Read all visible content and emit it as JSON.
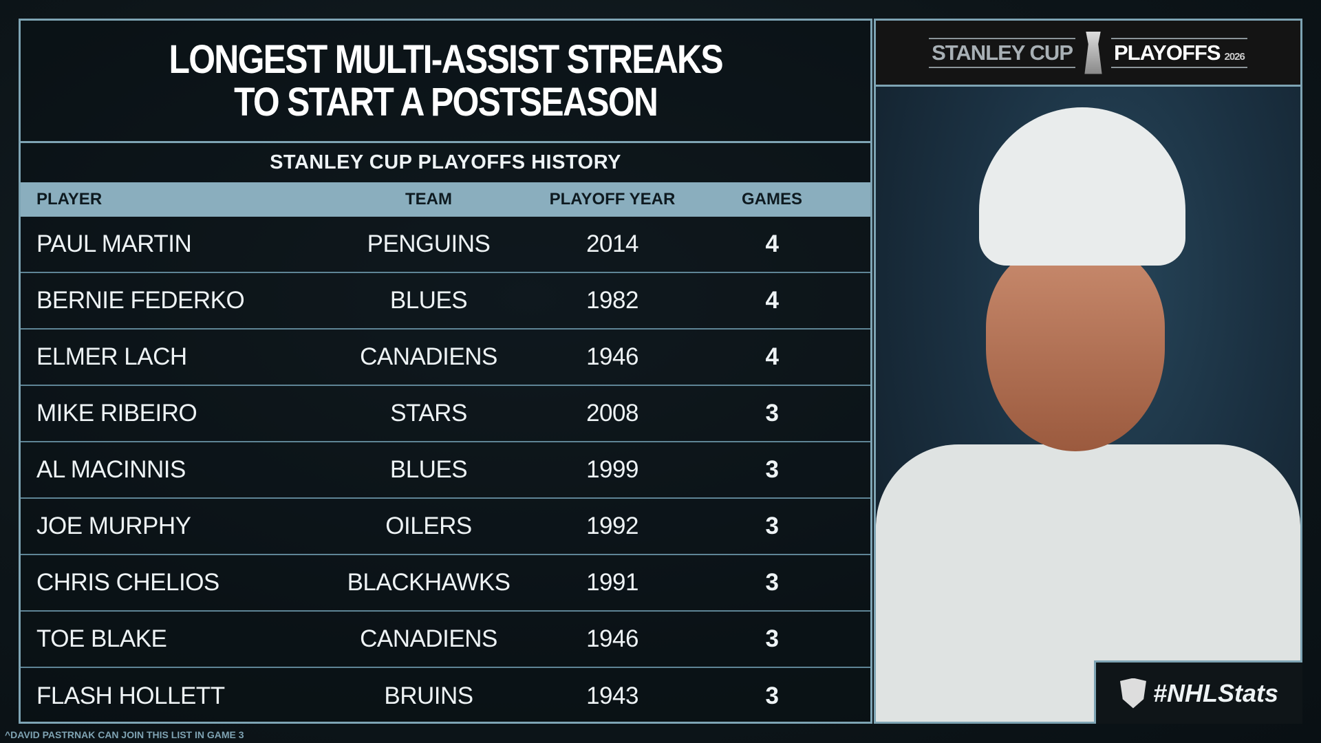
{
  "title": {
    "line1": "LONGEST MULTI-ASSIST STREAKS",
    "line2": "TO START A POSTSEASON"
  },
  "subtitle": "STANLEY CUP PLAYOFFS HISTORY",
  "columns": [
    "PLAYER",
    "TEAM",
    "PLAYOFF YEAR",
    "GAMES"
  ],
  "rows": [
    [
      "PAUL MARTIN",
      "PENGUINS",
      "2014",
      "4"
    ],
    [
      "BERNIE FEDERKO",
      "BLUES",
      "1982",
      "4"
    ],
    [
      "ELMER LACH",
      "CANADIENS",
      "1946",
      "4"
    ],
    [
      "MIKE RIBEIRO",
      "STARS",
      "2008",
      "3"
    ],
    [
      "AL MACINNIS",
      "BLUES",
      "1999",
      "3"
    ],
    [
      "JOE MURPHY",
      "OILERS",
      "1992",
      "3"
    ],
    [
      "CHRIS CHELIOS",
      "BLACKHAWKS",
      "1991",
      "3"
    ],
    [
      "TOE BLAKE",
      "CANADIENS",
      "1946",
      "3"
    ],
    [
      "FLASH HOLLETT",
      "BRUINS",
      "1943",
      "3"
    ]
  ],
  "logo": {
    "left": "STANLEY CUP",
    "right": "PLAYOFFS",
    "year": "2026"
  },
  "hashtag": "#NHLStats",
  "footnote": "^DAVID PASTRNAK CAN JOIN THIS LIST IN GAME 3",
  "colors": {
    "accent": "#7ea4b4",
    "header_bg": "#8aaebe",
    "background": "#0d1519"
  }
}
